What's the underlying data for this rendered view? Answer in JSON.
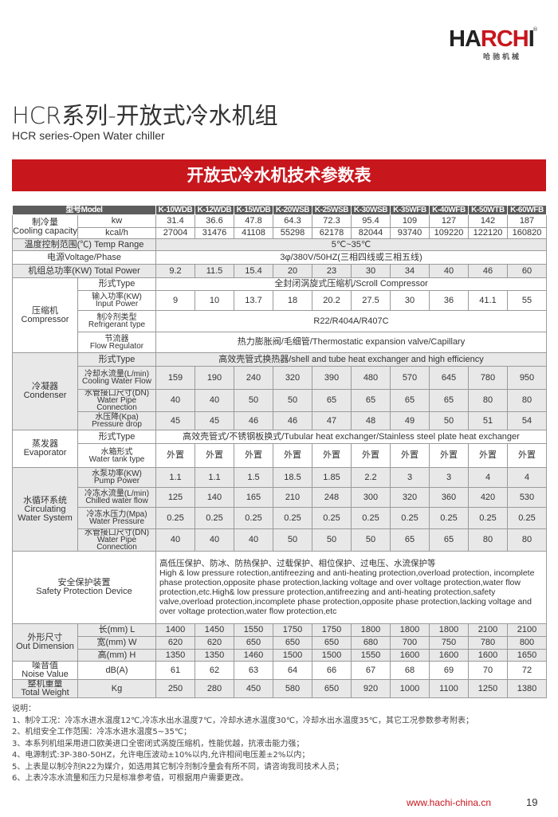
{
  "brand": {
    "logo_text": "HARCHI",
    "logo_sub": "哈驰机械",
    "registered": "®",
    "accent": "#c8161d"
  },
  "title": "HCR系列-开放式冷水机组",
  "subtitle": "HCR series-Open Water chiller",
  "banner": "开放式冷水机技术参数表",
  "table": {
    "header_label": "型号Model",
    "models": [
      "K-10WDB",
      "K-12WDB",
      "K-15WDB",
      "K-20WSB",
      "K-25WSB",
      "K-30WSB",
      "K-35WFB",
      "K-40WFB",
      "K-50WTB",
      "K-60WFB"
    ],
    "groups": [
      {
        "label": "制冷量\nCooling capacity",
        "rows": [
          {
            "sub": "kw",
            "values": [
              "31.4",
              "36.6",
              "47.8",
              "64.3",
              "72.3",
              "95.4",
              "109",
              "127",
              "142",
              "187"
            ]
          },
          {
            "sub": "kcal/h",
            "values": [
              "27004",
              "31476",
              "41108",
              "55298",
              "62178",
              "82044",
              "93740",
              "109220",
              "122120",
              "160820"
            ]
          }
        ]
      },
      {
        "label": "温度控制范围(℃) Temp Range",
        "rows": [
          {
            "span": "5℃~35℃"
          }
        ]
      },
      {
        "label": "电源Voltage/Phase",
        "rows": [
          {
            "span": "3φ/380V/50HZ(三相四线或三相五线)"
          }
        ]
      },
      {
        "label": "机组总功率(KW) Total Power",
        "rows": [
          {
            "values": [
              "9.2",
              "11.5",
              "15.4",
              "20",
              "23",
              "30",
              "34",
              "40",
              "46",
              "60"
            ]
          }
        ]
      },
      {
        "label": "压缩机\nCompressor",
        "rows": [
          {
            "sub": "形式Type",
            "span": "全封闭涡旋式压缩机/Scroll Compressor"
          },
          {
            "sub": "输入功率(KW)\nInput Power",
            "values": [
              "9",
              "10",
              "13.7",
              "18",
              "20.2",
              "27.5",
              "30",
              "36",
              "41.1",
              "55"
            ]
          },
          {
            "sub": "制冷剂类型\nRefrigerant type",
            "span": "R22/R404A/R407C"
          },
          {
            "sub": "节流器\nFlow Regulator",
            "span": "热力膨胀阀/毛细管/Thermostatic expansion valve/Capillary"
          }
        ]
      },
      {
        "label": "冷凝器\nCondenser",
        "rows": [
          {
            "sub": "形式Type",
            "span": "高效壳管式换热器/shell and tube heat exchanger and high efficiency"
          },
          {
            "sub": "冷却水流量(L/min)\nCooling Water Flow",
            "values": [
              "159",
              "190",
              "240",
              "320",
              "390",
              "480",
              "570",
              "645",
              "780",
              "950"
            ]
          },
          {
            "sub": "水管接口尺寸(DN)\nWater Pipe Connection",
            "values": [
              "40",
              "40",
              "50",
              "50",
              "65",
              "65",
              "65",
              "65",
              "80",
              "80"
            ]
          },
          {
            "sub": "水压降(Kpa)\nPressure drop",
            "values": [
              "45",
              "45",
              "46",
              "46",
              "47",
              "48",
              "49",
              "50",
              "51",
              "54"
            ]
          }
        ]
      },
      {
        "label": "蒸发器\nEvaporator",
        "rows": [
          {
            "sub": "形式Type",
            "span": "高效壳管式/不锈钢板换式/Tubular heat exchanger/Stainless steel plate heat exchanger"
          },
          {
            "sub": "水箱形式\nWater tank type",
            "values": [
              "外置",
              "外置",
              "外置",
              "外置",
              "外置",
              "外置",
              "外置",
              "外置",
              "外置",
              "外置"
            ]
          }
        ]
      },
      {
        "label": "水循环系统\nCirculating\nWater System",
        "rows": [
          {
            "sub": "水泵功率(KW)\nPump Power",
            "values": [
              "1.1",
              "1.1",
              "1.5",
              "18.5",
              "1.85",
              "2.2",
              "3",
              "3",
              "4",
              "4"
            ]
          },
          {
            "sub": "冷冻水流量(L/min)\nChilled water flow",
            "values": [
              "125",
              "140",
              "165",
              "210",
              "248",
              "300",
              "320",
              "360",
              "420",
              "530"
            ]
          },
          {
            "sub": "冷冻水压力(Mpa)\nWater Pressure",
            "values": [
              "0.25",
              "0.25",
              "0.25",
              "0.25",
              "0.25",
              "0.25",
              "0.25",
              "0.25",
              "0.25",
              "0.25"
            ]
          },
          {
            "sub": "水管接口尺寸(DN)\nWater Pipe Connection",
            "values": [
              "40",
              "40",
              "40",
              "50",
              "50",
              "50",
              "65",
              "65",
              "80",
              "80"
            ]
          }
        ]
      },
      {
        "label": "安全保护装置\nSafety Protection Device",
        "rows": [
          {
            "text": "高低压保护、防冰、防热保护、过载保护、相位保护、过电压、水流保护等\nHigh & low pressure rotection,antifreezing and anti-heating protection,overload protection, incomplete phase protection,opposite phase protection,lacking voltage and over voltage protection,water flow protection,etc.High& low pressure protection,antifreezing and anti-heating protection,safety valve,overload protection,incomplete phase protection,opposite phase protection,lacking voltage and over voltage protection,water flow protection,etc"
          }
        ]
      },
      {
        "label": "外形尺寸\nOut Dimension",
        "rows": [
          {
            "sub": "长(mm) L",
            "values": [
              "1400",
              "1450",
              "1550",
              "1750",
              "1750",
              "1800",
              "1800",
              "1800",
              "2100",
              "2100"
            ]
          },
          {
            "sub": "宽(mm) W",
            "values": [
              "620",
              "620",
              "650",
              "650",
              "650",
              "680",
              "700",
              "750",
              "780",
              "800"
            ]
          },
          {
            "sub": "高(mm) H",
            "values": [
              "1350",
              "1350",
              "1460",
              "1500",
              "1500",
              "1550",
              "1600",
              "1600",
              "1600",
              "1650"
            ]
          }
        ]
      },
      {
        "label": "噪音值\nNoise Value",
        "rows": [
          {
            "sub": "dB(A)",
            "values": [
              "61",
              "62",
              "63",
              "64",
              "66",
              "67",
              "68",
              "69",
              "70",
              "72"
            ]
          }
        ]
      },
      {
        "label": "整机重量\nTotal Weight",
        "rows": [
          {
            "sub": "Kg",
            "values": [
              "250",
              "280",
              "450",
              "580",
              "650",
              "920",
              "1000",
              "1100",
              "1250",
              "1380"
            ]
          }
        ]
      }
    ]
  },
  "notes": {
    "heading": "说明：",
    "items": [
      "1、制冷工况：冷冻水进水温度12℃,冷冻水出水温度7℃，冷却水进水温度30℃，冷却水出水温度35℃，其它工况参数参考附表；",
      "2、机组安全工作范围：冷冻水进水温度5~35℃；",
      "3、本系列机组采用进口欧美进口全密闭式涡旋压缩机，性能优越，抗液击能力强；",
      "4、电源制式:3P-380-50HZ，允许电压波动±10%以内,允许相间电压差±2%以内；",
      "5、上表是以制冷剂R22为媒介，如选用其它制冷剂制冷量会有所不同，请咨询我司技术人员；",
      "6、上表冷冻水流量和压力只是标准参考值，可根据用户需要更改。"
    ]
  },
  "footer": {
    "url": "www.hachi-china.cn",
    "page": "19"
  }
}
